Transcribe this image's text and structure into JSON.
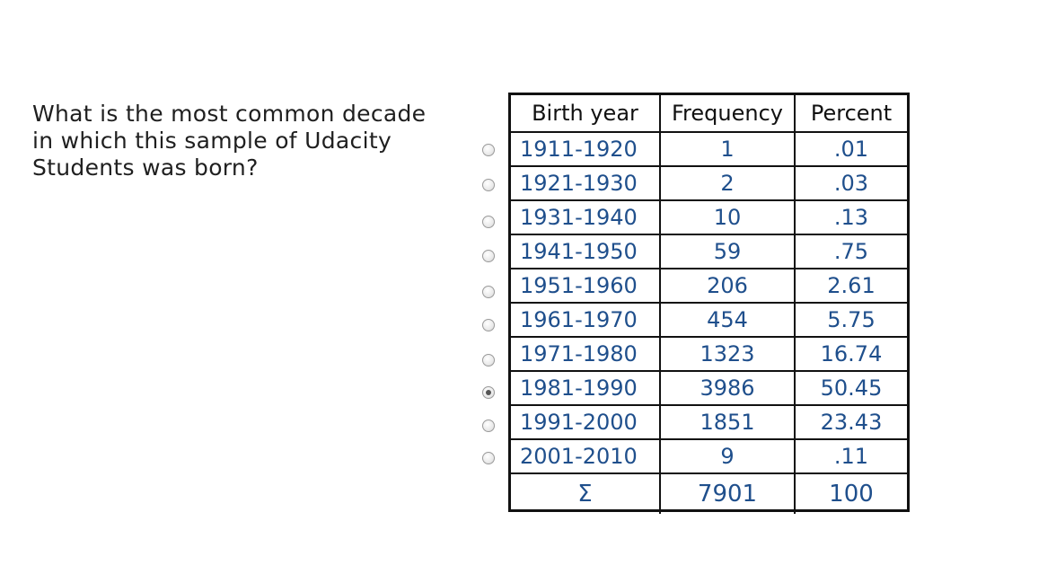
{
  "question": {
    "lines": [
      "What is the most common decade",
      "in which this sample of Udacity",
      "Students was born?"
    ]
  },
  "table": {
    "headers": [
      "Birth year",
      "Frequency",
      "Percent"
    ],
    "rows": [
      {
        "year": "1911-1920",
        "frequency": "1",
        "percent": ".01"
      },
      {
        "year": "1921-1930",
        "frequency": "2",
        "percent": ".03"
      },
      {
        "year": "1931-1940",
        "frequency": "10",
        "percent": ".13"
      },
      {
        "year": "1941-1950",
        "frequency": "59",
        "percent": ".75"
      },
      {
        "year": "1951-1960",
        "frequency": "206",
        "percent": "2.61"
      },
      {
        "year": "1961-1970",
        "frequency": "454",
        "percent": "5.75"
      },
      {
        "year": "1971-1980",
        "frequency": "1323",
        "percent": "16.74"
      },
      {
        "year": "1981-1990",
        "frequency": "3986",
        "percent": "50.45"
      },
      {
        "year": "1991-2000",
        "frequency": "1851",
        "percent": "23.43"
      },
      {
        "year": "2001-2010",
        "frequency": "9",
        "percent": ".11"
      }
    ],
    "total": {
      "symbol": "Σ",
      "frequency": "7901",
      "percent": "100"
    }
  },
  "answer_options": {
    "selected_index": 7
  }
}
